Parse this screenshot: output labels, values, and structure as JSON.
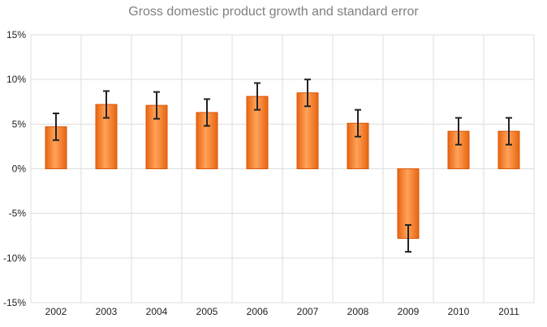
{
  "chart_data": {
    "type": "bar",
    "title": "Gross domestic product growth and standard error",
    "xlabel": "",
    "ylabel": "",
    "categories": [
      "2002",
      "2003",
      "2004",
      "2005",
      "2006",
      "2007",
      "2008",
      "2009",
      "2010",
      "2011"
    ],
    "values": [
      4.7,
      7.2,
      7.1,
      6.3,
      8.1,
      8.5,
      5.1,
      -7.8,
      4.2,
      4.2
    ],
    "error": [
      1.5,
      1.5,
      1.5,
      1.5,
      1.5,
      1.5,
      1.5,
      1.5,
      1.5,
      1.5
    ],
    "ylim": [
      -15,
      15
    ],
    "yticks": [
      -15,
      -10,
      -5,
      0,
      5,
      10,
      15
    ],
    "ytick_labels": [
      "-15%",
      "-10%",
      "-5%",
      "0%",
      "5%",
      "10%",
      "15%"
    ],
    "grid": true,
    "colors": {
      "bar": "#ff7f27",
      "bar_edge": "#d9570a",
      "error": "#222222",
      "grid": "#dddddd"
    }
  }
}
